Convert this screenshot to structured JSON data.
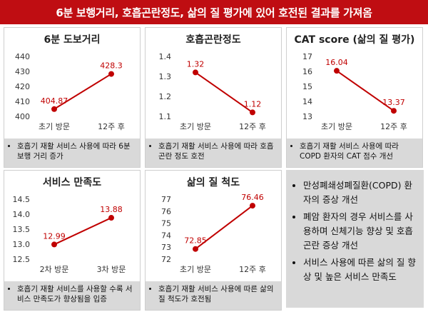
{
  "header": {
    "title": "6분 보행거리, 호흡곤란정도, 삶의 질 평가에 있어 호전된 결과를 가져옴"
  },
  "colors": {
    "accent": "#bf0d12",
    "line": "#c00000",
    "note_bg": "#d9d9d9"
  },
  "panels": [
    {
      "title": "6분 도보거리",
      "note": "호흡기 재활 서비스 사용에 따라 6분 보행 거리 증가"
    },
    {
      "title": "호흡곤란정도",
      "note": "호흡기 재활 서비스 사용에 따라 호흡곤란 정도 호전"
    },
    {
      "title": "CAT score (삶의 질 평가)",
      "note": "호흡기 재활 서비스 사용에 따라 COPD 환자의 CAT 점수 개선"
    },
    {
      "title": "서비스 만족도",
      "note": "호흡기 재활 서비스를 사용할 수록 서비스 만족도가 향상됨을 입증"
    },
    {
      "title": "삶의 질 척도",
      "note": "호흡기 재활 서비스 사용에 따른 삶의 질 척도가 호전됨"
    }
  ],
  "summary": {
    "items": [
      "만성폐쇄성폐질환(COPD) 환자의 증상 개선",
      "폐암 환자의 경우 서비스를 사용하며 신체기능 향상 및 호흡곤란 증상 개선",
      "서비스 사용에 따른 삶의 질 향상 및 높은 서비스 만족도"
    ]
  },
  "chart_data": [
    {
      "type": "line",
      "title": "6분 도보거리",
      "categories": [
        "초기 방문",
        "12주 후"
      ],
      "values": [
        404.87,
        428.3
      ],
      "value_labels": [
        "404.87",
        "428.3"
      ],
      "yticks": [
        "400",
        "410",
        "420",
        "430",
        "440"
      ],
      "ylim": [
        400,
        440
      ]
    },
    {
      "type": "line",
      "title": "호흡곤란정도",
      "categories": [
        "초기 방문",
        "12주 후"
      ],
      "values": [
        1.32,
        1.12
      ],
      "value_labels": [
        "1.32",
        "1.12"
      ],
      "yticks": [
        "1.1",
        "1.2",
        "1.3",
        "1.4"
      ],
      "ylim": [
        1.1,
        1.4
      ]
    },
    {
      "type": "line",
      "title": "CAT score (삶의 질 평가)",
      "categories": [
        "초기 방문",
        "12주 후"
      ],
      "values": [
        16.04,
        13.37
      ],
      "value_labels": [
        "16.04",
        "13.37"
      ],
      "yticks": [
        "13",
        "14",
        "15",
        "16",
        "17"
      ],
      "ylim": [
        13,
        17
      ]
    },
    {
      "type": "line",
      "title": "서비스 만족도",
      "categories": [
        "2차 방문",
        "3차 방문"
      ],
      "values": [
        12.99,
        13.88
      ],
      "value_labels": [
        "12.99",
        "13.88"
      ],
      "yticks": [
        "12.5",
        "13.0",
        "13.5",
        "14.0",
        "14.5"
      ],
      "ylim": [
        12.5,
        14.5
      ]
    },
    {
      "type": "line",
      "title": "삶의 질 척도",
      "categories": [
        "초기 방문",
        "12주 후"
      ],
      "values": [
        72.85,
        76.46
      ],
      "value_labels": [
        "72.85",
        "76.46"
      ],
      "yticks": [
        "72",
        "73",
        "74",
        "75",
        "76",
        "77"
      ],
      "ylim": [
        72,
        77
      ]
    }
  ]
}
